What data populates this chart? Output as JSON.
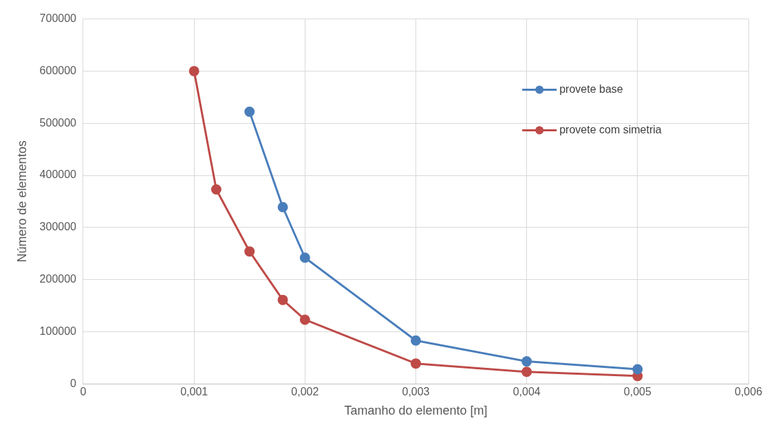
{
  "chart_data": {
    "type": "line",
    "xlabel": "Tamanho do elemento [m]",
    "ylabel": "Número de elementos",
    "xlim": [
      0,
      0.006
    ],
    "xticks": [
      0,
      {
        "value": 0.001,
        "label": "0,001"
      },
      {
        "value": 0.002,
        "label": "0,002"
      },
      {
        "value": 0.003,
        "label": "0,003"
      },
      {
        "value": 0.004,
        "label": "0,004"
      },
      {
        "value": 0.005,
        "label": "0,005"
      },
      {
        "value": 0.006,
        "label": "0,006"
      }
    ],
    "ylim": [
      0,
      700000
    ],
    "yticks": [
      0,
      100000,
      200000,
      300000,
      400000,
      500000,
      600000,
      700000
    ],
    "grid": true,
    "legend": "top right",
    "marker": "circle",
    "line_style": "solid",
    "series": [
      {
        "name": "provete base",
        "color": "#4a7ebb",
        "x": [
          0.0015,
          0.0018,
          0.002,
          0.003,
          0.004,
          0.005
        ],
        "values": [
          522000,
          339000,
          242000,
          83000,
          43000,
          28000
        ]
      },
      {
        "name": "provete com simetria",
        "color": "#be4b48",
        "x": [
          0.001,
          0.0012,
          0.0015,
          0.0018,
          0.002,
          0.003,
          0.004,
          0.005
        ],
        "values": [
          600000,
          373000,
          254000,
          161000,
          123000,
          39000,
          23000,
          15000
        ]
      }
    ]
  }
}
